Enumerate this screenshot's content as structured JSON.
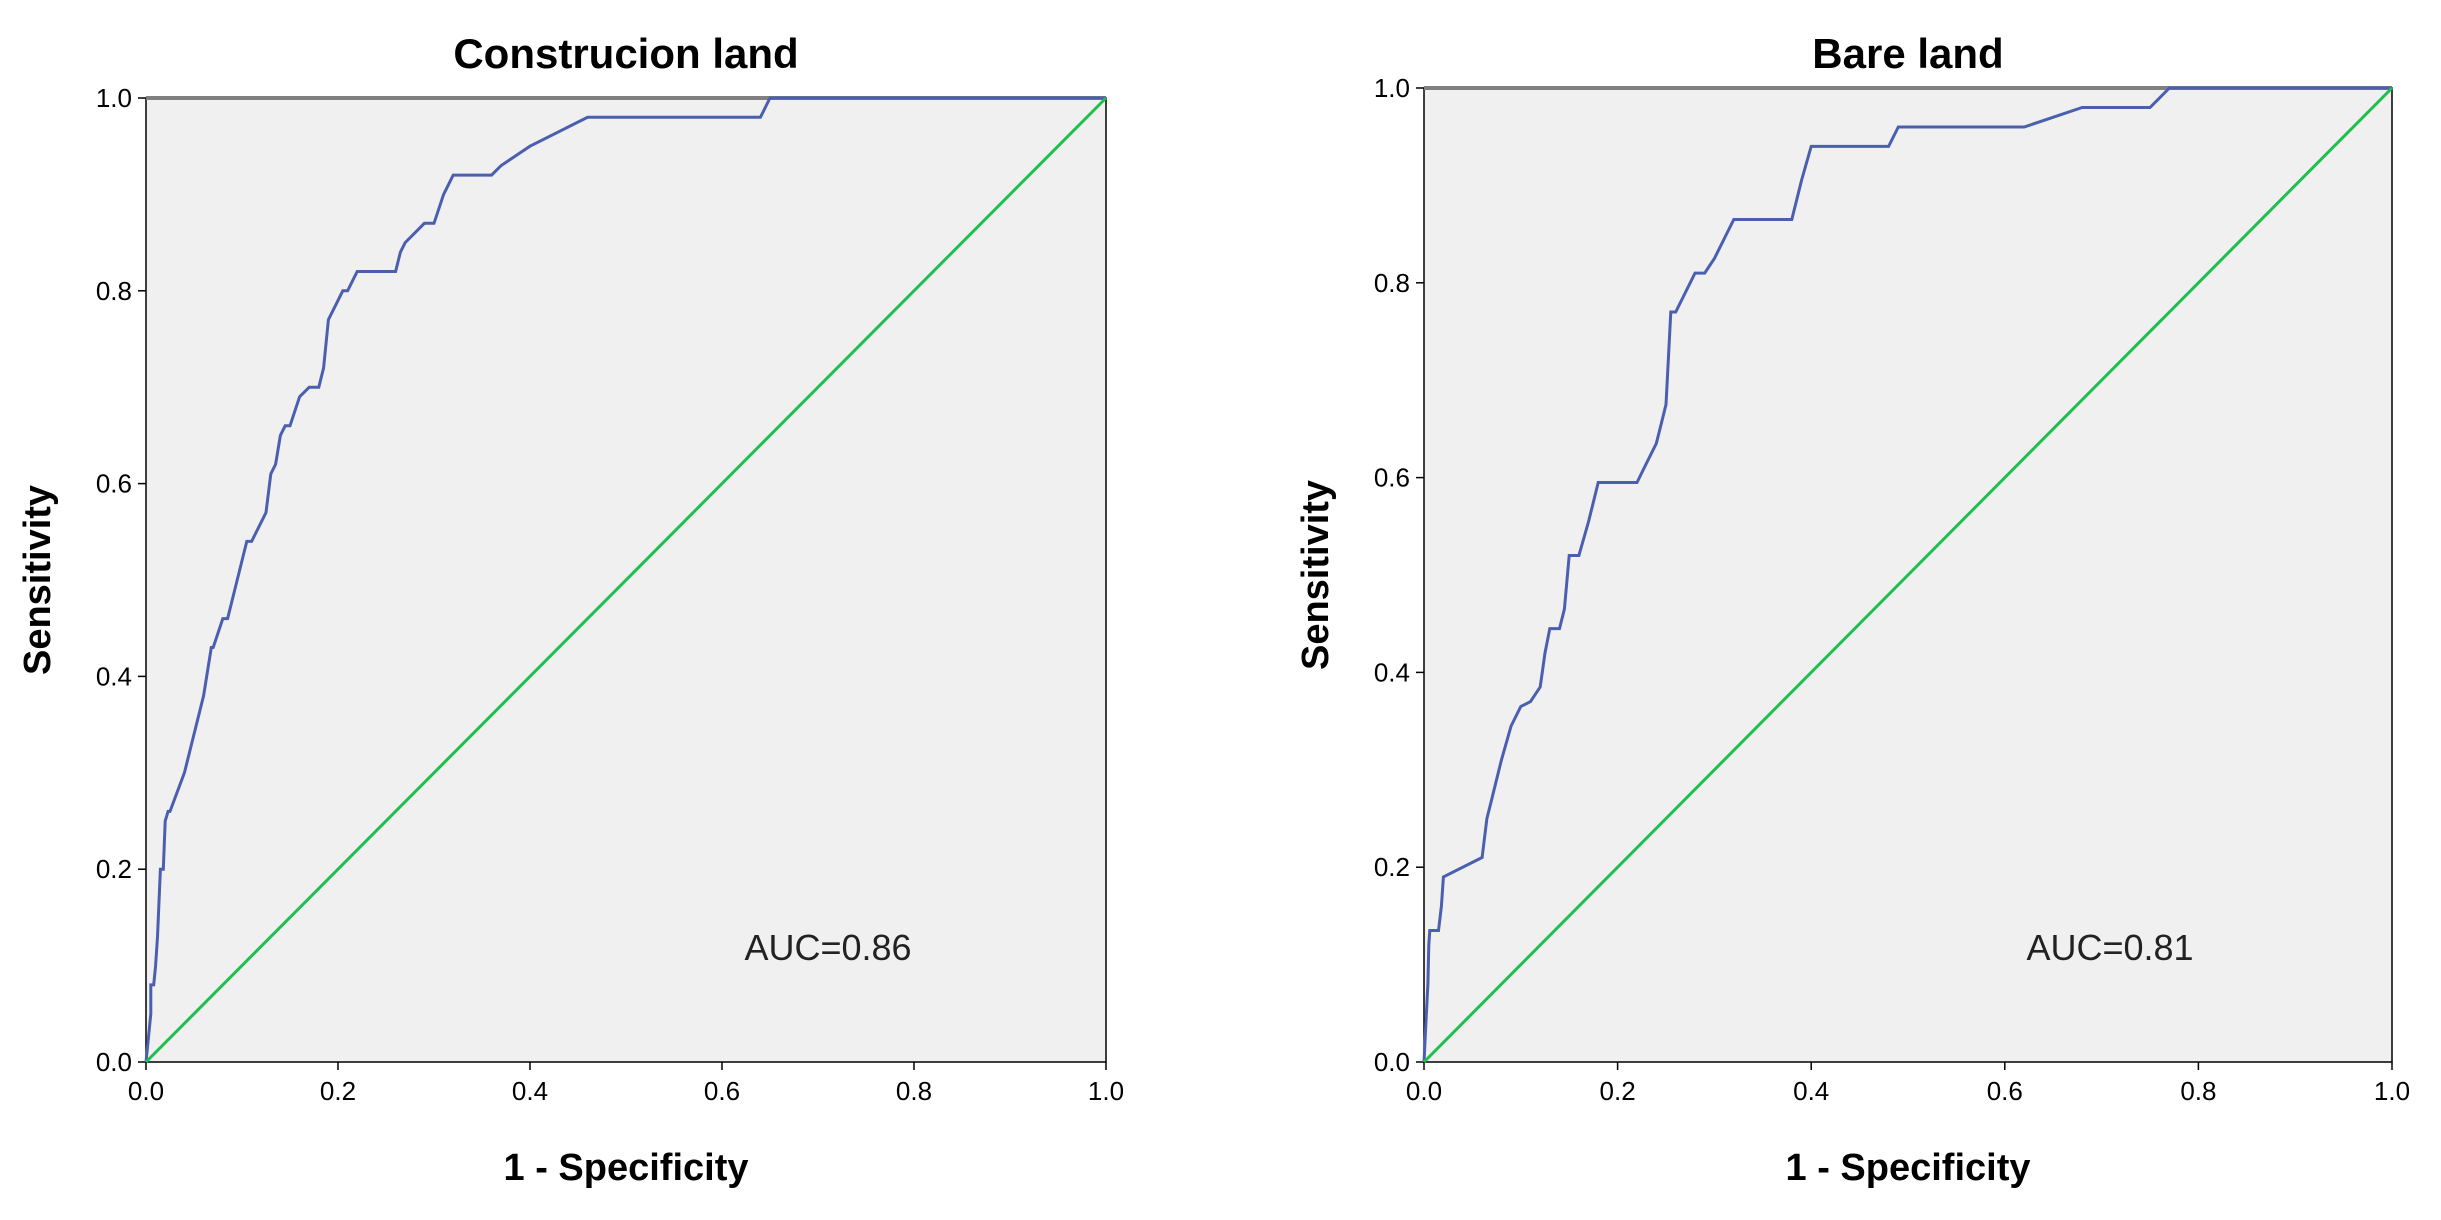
{
  "chart_data": [
    {
      "type": "line",
      "title": "Construcion land",
      "xlabel": "1 - Specificity",
      "ylabel": "Sensitivity",
      "xlim": [
        0,
        1
      ],
      "ylim": [
        0,
        1
      ],
      "xticks": [
        "0.0",
        "0.2",
        "0.4",
        "0.6",
        "0.8",
        "1.0"
      ],
      "yticks": [
        "0.0",
        "0.2",
        "0.4",
        "0.6",
        "0.8",
        "1.0"
      ],
      "annotation": "AUC=0.86",
      "grid": false,
      "series": [
        {
          "color": "#4a5fb0",
          "x": [
            0,
            0.003,
            0.005,
            0.005,
            0.008,
            0.01,
            0.012,
            0.015,
            0.018,
            0.02,
            0.023,
            0.025,
            0.04,
            0.06,
            0.068,
            0.07,
            0.08,
            0.085,
            0.09,
            0.1,
            0.105,
            0.11,
            0.12,
            0.125,
            0.13,
            0.135,
            0.14,
            0.145,
            0.15,
            0.16,
            0.17,
            0.18,
            0.185,
            0.19,
            0.195,
            0.2,
            0.205,
            0.21,
            0.22,
            0.26,
            0.265,
            0.27,
            0.29,
            0.3,
            0.31,
            0.315,
            0.32,
            0.36,
            0.37,
            0.4,
            0.44,
            0.46,
            0.52,
            0.64,
            0.65,
            0.75,
            1.0
          ],
          "y": [
            0,
            0.03,
            0.05,
            0.08,
            0.08,
            0.1,
            0.13,
            0.2,
            0.2,
            0.25,
            0.26,
            0.26,
            0.3,
            0.38,
            0.43,
            0.43,
            0.46,
            0.46,
            0.48,
            0.52,
            0.54,
            0.54,
            0.56,
            0.57,
            0.61,
            0.62,
            0.65,
            0.66,
            0.66,
            0.69,
            0.7,
            0.7,
            0.72,
            0.77,
            0.78,
            0.79,
            0.8,
            0.8,
            0.82,
            0.82,
            0.84,
            0.85,
            0.87,
            0.87,
            0.9,
            0.91,
            0.92,
            0.92,
            0.93,
            0.95,
            0.97,
            0.98,
            0.98,
            0.98,
            1.0,
            1.0,
            1.0
          ]
        },
        {
          "color": "#1fbf4f",
          "x": [
            0,
            1
          ],
          "y": [
            0,
            1
          ]
        }
      ]
    },
    {
      "type": "line",
      "title": "Bare land",
      "xlabel": "1 - Specificity",
      "ylabel": "Sensitivity",
      "xlim": [
        0,
        1
      ],
      "ylim": [
        0,
        1
      ],
      "xticks": [
        "0.0",
        "0.2",
        "0.4",
        "0.6",
        "0.8",
        "1.0"
      ],
      "yticks": [
        "0.0",
        "0.2",
        "0.4",
        "0.6",
        "0.8",
        "1.0"
      ],
      "annotation": "AUC=0.81",
      "grid": false,
      "series": [
        {
          "color": "#4a5fb0",
          "x": [
            0,
            0.002,
            0.004,
            0.005,
            0.006,
            0.015,
            0.018,
            0.02,
            0.06,
            0.065,
            0.07,
            0.075,
            0.08,
            0.09,
            0.1,
            0.11,
            0.12,
            0.125,
            0.13,
            0.14,
            0.145,
            0.15,
            0.16,
            0.17,
            0.175,
            0.18,
            0.22,
            0.23,
            0.24,
            0.245,
            0.25,
            0.255,
            0.26,
            0.27,
            0.28,
            0.29,
            0.3,
            0.31,
            0.32,
            0.33,
            0.38,
            0.39,
            0.4,
            0.41,
            0.48,
            0.49,
            0.5,
            0.62,
            0.68,
            0.75,
            0.77,
            0.79,
            1.0
          ],
          "y": [
            0,
            0.04,
            0.08,
            0.12,
            0.135,
            0.135,
            0.16,
            0.19,
            0.21,
            0.25,
            0.27,
            0.29,
            0.31,
            0.345,
            0.365,
            0.37,
            0.385,
            0.42,
            0.445,
            0.445,
            0.465,
            0.52,
            0.52,
            0.555,
            0.575,
            0.595,
            0.595,
            0.615,
            0.635,
            0.655,
            0.675,
            0.77,
            0.77,
            0.79,
            0.81,
            0.81,
            0.825,
            0.845,
            0.865,
            0.865,
            0.865,
            0.905,
            0.94,
            0.94,
            0.94,
            0.96,
            0.96,
            0.96,
            0.98,
            0.98,
            1.0,
            1.0,
            1.0
          ]
        },
        {
          "color": "#1fbf4f",
          "x": [
            0,
            1
          ],
          "y": [
            0,
            1
          ]
        }
      ]
    }
  ]
}
